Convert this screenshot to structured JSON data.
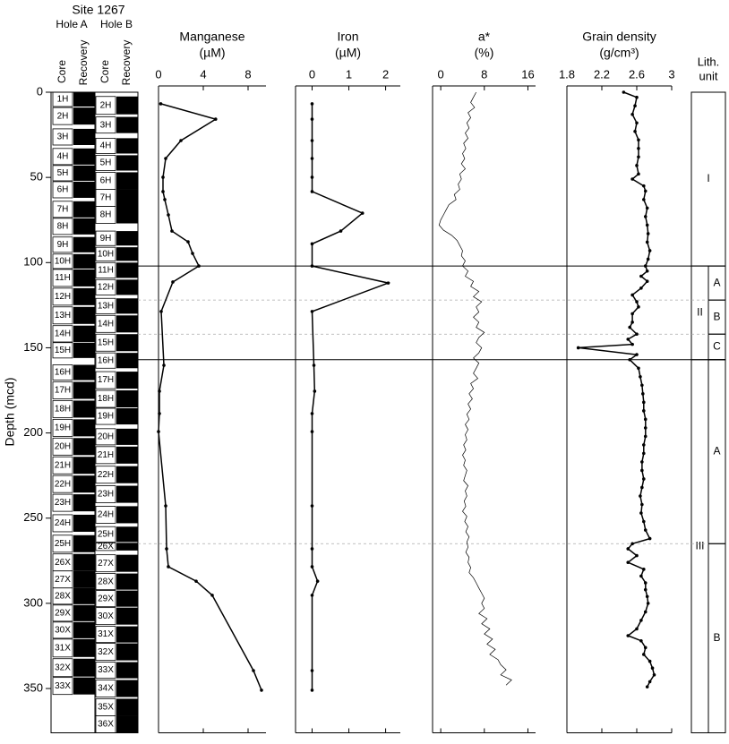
{
  "title": "Site 1267",
  "depth_axis": {
    "label": "Depth (mcd)",
    "ylim": [
      0,
      376
    ],
    "yticks": [
      0,
      50,
      100,
      150,
      200,
      250,
      300,
      350
    ]
  },
  "column_labels": [
    "Core",
    "Recovery"
  ],
  "holes": [
    {
      "name": "Hole A",
      "cores": [
        {
          "name": "1H",
          "top": 0,
          "bottom": 8.4
        },
        {
          "name": "2H",
          "top": 9,
          "bottom": 19
        },
        {
          "name": "3H",
          "top": 21.5,
          "bottom": 31
        },
        {
          "name": "4H",
          "top": 33,
          "bottom": 42.5
        },
        {
          "name": "5H",
          "top": 43,
          "bottom": 52
        },
        {
          "name": "6H",
          "top": 52.5,
          "bottom": 62
        },
        {
          "name": "7H",
          "top": 64,
          "bottom": 73.5
        },
        {
          "name": "8H",
          "top": 74,
          "bottom": 83.5
        },
        {
          "name": "9H",
          "top": 85,
          "bottom": 94
        },
        {
          "name": "10H",
          "top": 95,
          "bottom": 103.5
        },
        {
          "name": "11H",
          "top": 104,
          "bottom": 114
        },
        {
          "name": "12H",
          "top": 115,
          "bottom": 125
        },
        {
          "name": "13H",
          "top": 126,
          "bottom": 136
        },
        {
          "name": "14H",
          "top": 137,
          "bottom": 146.6
        },
        {
          "name": "15H",
          "top": 147,
          "bottom": 156
        },
        {
          "name": "16H",
          "top": 160,
          "bottom": 169
        },
        {
          "name": "17H",
          "top": 170,
          "bottom": 180
        },
        {
          "name": "18H",
          "top": 181,
          "bottom": 191
        },
        {
          "name": "19H",
          "top": 192,
          "bottom": 202
        },
        {
          "name": "20H",
          "top": 203,
          "bottom": 213
        },
        {
          "name": "21H",
          "top": 214,
          "bottom": 224
        },
        {
          "name": "22H",
          "top": 225,
          "bottom": 235
        },
        {
          "name": "23H",
          "top": 236,
          "bottom": 246
        },
        {
          "name": "24H",
          "top": 248,
          "bottom": 258
        },
        {
          "name": "25H",
          "top": 260,
          "bottom": 270
        },
        {
          "name": "26X",
          "top": 271,
          "bottom": 281
        },
        {
          "name": "27X",
          "top": 281,
          "bottom": 291
        },
        {
          "name": "28X",
          "top": 291,
          "bottom": 300.5
        },
        {
          "name": "29X",
          "top": 301,
          "bottom": 310.5
        },
        {
          "name": "30X",
          "top": 311,
          "bottom": 320.5
        },
        {
          "name": "31X",
          "top": 321,
          "bottom": 331.5
        },
        {
          "name": "32X",
          "top": 332.5,
          "bottom": 343
        },
        {
          "name": "33X",
          "top": 343.5,
          "bottom": 353.5
        }
      ]
    },
    {
      "name": "Hole B",
      "cores": [
        {
          "name": "2H",
          "top": 2.5,
          "bottom": 13
        },
        {
          "name": "3H",
          "top": 14.5,
          "bottom": 24
        },
        {
          "name": "4H",
          "top": 27,
          "bottom": 36
        },
        {
          "name": "5H",
          "top": 37,
          "bottom": 46
        },
        {
          "name": "6H",
          "top": 47,
          "bottom": 57
        },
        {
          "name": "7H",
          "top": 57,
          "bottom": 67
        },
        {
          "name": "8H",
          "top": 67,
          "bottom": 77
        },
        {
          "name": "9H",
          "top": 81.5,
          "bottom": 90
        },
        {
          "name": "10H",
          "top": 91,
          "bottom": 99
        },
        {
          "name": "11H",
          "top": 100,
          "bottom": 109
        },
        {
          "name": "12H",
          "top": 110,
          "bottom": 119
        },
        {
          "name": "13H",
          "top": 121,
          "bottom": 130
        },
        {
          "name": "14H",
          "top": 131,
          "bottom": 141
        },
        {
          "name": "15H",
          "top": 142,
          "bottom": 152
        },
        {
          "name": "16H",
          "top": 153,
          "bottom": 162
        },
        {
          "name": "17H",
          "top": 164,
          "bottom": 174
        },
        {
          "name": "18H",
          "top": 175,
          "bottom": 185
        },
        {
          "name": "19H",
          "top": 185.5,
          "bottom": 195
        },
        {
          "name": "20H",
          "top": 197.5,
          "bottom": 207
        },
        {
          "name": "21H",
          "top": 208,
          "bottom": 218
        },
        {
          "name": "22H",
          "top": 219.5,
          "bottom": 229.5
        },
        {
          "name": "23H",
          "top": 231,
          "bottom": 241
        },
        {
          "name": "24H",
          "top": 243,
          "bottom": 253
        },
        {
          "name": "25H",
          "top": 255,
          "bottom": 264
        },
        {
          "name": "26X",
          "top": 264.5,
          "bottom": 269
        },
        {
          "name": "27X",
          "top": 271.5,
          "bottom": 281.5
        },
        {
          "name": "28X",
          "top": 282.5,
          "bottom": 292
        },
        {
          "name": "29X",
          "top": 292.5,
          "bottom": 302
        },
        {
          "name": "30X",
          "top": 302.5,
          "bottom": 312.5
        },
        {
          "name": "31X",
          "top": 313.5,
          "bottom": 323
        },
        {
          "name": "32X",
          "top": 323.5,
          "bottom": 333.5
        },
        {
          "name": "33X",
          "top": 334.5,
          "bottom": 344
        },
        {
          "name": "34X",
          "top": 345,
          "bottom": 355
        },
        {
          "name": "35X",
          "top": 356,
          "bottom": 366
        },
        {
          "name": "36X",
          "top": 366,
          "bottom": 376
        }
      ]
    }
  ],
  "chart_data": [
    {
      "type": "line",
      "xlabel": "Manganese",
      "unit": "(µM)",
      "xlim": [
        0,
        9.6
      ],
      "xticks": [
        0,
        4,
        8
      ],
      "markers": true,
      "depth": [
        6.8,
        15.8,
        28.4,
        38.9,
        49.9,
        58.3,
        63,
        72,
        81.5,
        87.8,
        94.6,
        102,
        111.4,
        128.7,
        160.3,
        175.5,
        188.6,
        199.2,
        242.8,
        268,
        278.5,
        287,
        295.3,
        339.5,
        351
      ],
      "values": [
        0.2,
        5.1,
        2.0,
        0.64,
        0.4,
        0.4,
        0.56,
        0.88,
        1.2,
        2.64,
        3.04,
        3.6,
        1.28,
        0.24,
        0.48,
        0.08,
        0.08,
        0,
        0.64,
        0.72,
        0.88,
        3.36,
        4.8,
        8.48,
        9.2
      ]
    },
    {
      "type": "line",
      "xlabel": "Iron",
      "unit": "(µM)",
      "xlim": [
        -0.45,
        2.4
      ],
      "xticks": [
        0,
        1,
        2
      ],
      "markers": true,
      "depth": [
        6.8,
        15.8,
        28.4,
        38.9,
        49.9,
        58.3,
        71,
        81.5,
        89,
        102,
        112,
        128.7,
        160.3,
        175.5,
        188.6,
        199.2,
        242.8,
        268,
        278.5,
        287,
        295.3,
        339.5,
        351
      ],
      "values": [
        0,
        0,
        0,
        0,
        0,
        0,
        1.37,
        0.78,
        0,
        0,
        2.07,
        0,
        0.05,
        0.07,
        0,
        0,
        0,
        0,
        0,
        0.15,
        0,
        0,
        0
      ]
    },
    {
      "type": "line",
      "xlabel": "a*",
      "unit": "(%)",
      "xlim": [
        -1.5,
        17.4
      ],
      "xticks": [
        0,
        8,
        16
      ],
      "markers": false,
      "depth": [
        0,
        3,
        6,
        9,
        12,
        15,
        18,
        21,
        24,
        27,
        30,
        33,
        36,
        39,
        42,
        45,
        48,
        51,
        54,
        57,
        60,
        63,
        66,
        69,
        72,
        75,
        78,
        81,
        84,
        87,
        90,
        93,
        96,
        99,
        102,
        105,
        108,
        111,
        114,
        117,
        120,
        123,
        126,
        129,
        132,
        135,
        138,
        141,
        144,
        147,
        150,
        153,
        156,
        159,
        162,
        165,
        168,
        171,
        174,
        177,
        180,
        183,
        186,
        189,
        192,
        195,
        198,
        201,
        204,
        207,
        210,
        213,
        216,
        219,
        222,
        225,
        228,
        231,
        234,
        237,
        240,
        243,
        246,
        249,
        252,
        255,
        258,
        261,
        264,
        267,
        270,
        273,
        276,
        279,
        282,
        285,
        288,
        291,
        294,
        297,
        300,
        303,
        306,
        309,
        312,
        315,
        318,
        321,
        324,
        327,
        330,
        333,
        336,
        339,
        342,
        345,
        348
      ],
      "values": [
        6.5,
        6,
        5.5,
        6.2,
        5,
        5.5,
        4.8,
        5.2,
        4.5,
        5,
        4.2,
        4.6,
        4,
        4.4,
        3.8,
        4.5,
        3.5,
        3.8,
        3.2,
        3.5,
        2.5,
        2.8,
        1.5,
        1,
        0.5,
        0,
        -0.3,
        0.5,
        2,
        3,
        3.5,
        4,
        3.8,
        4.5,
        4,
        5,
        4.5,
        6,
        5.5,
        7,
        6,
        7.5,
        6.5,
        7,
        6,
        7,
        6.5,
        8,
        7,
        6.5,
        7.5,
        7,
        6,
        7,
        6.5,
        6,
        6.8,
        5.5,
        6,
        5.2,
        5.8,
        5,
        5.5,
        4.8,
        5.2,
        4.5,
        5,
        4.5,
        4.8,
        4.2,
        4.6,
        4,
        4.5,
        4.2,
        4.8,
        4.5,
        4.2,
        5,
        4.5,
        4.8,
        4.3,
        4.6,
        4,
        4.8,
        4.4,
        5,
        4.6,
        5.2,
        4.8,
        5,
        4.6,
        5.2,
        5,
        5.5,
        5.2,
        6,
        6.5,
        7,
        7.5,
        8,
        7.5,
        8,
        7,
        8.5,
        7.5,
        9,
        8,
        9.5,
        8.5,
        10,
        9,
        10.5,
        11,
        12,
        11,
        13,
        12
      ]
    },
    {
      "type": "line",
      "xlabel": "Grain density",
      "unit": "(g/cm³)",
      "xlim": [
        1.8,
        3
      ],
      "xticks": [
        1.8,
        2.2,
        2.6,
        3
      ],
      "markers": true,
      "depth": [
        0,
        3,
        8,
        13,
        18,
        23,
        28,
        33,
        38,
        43,
        48,
        51,
        55,
        58,
        63,
        68,
        73,
        78,
        83,
        88,
        93,
        98,
        102,
        105,
        108,
        111,
        115,
        119,
        123,
        126,
        130,
        135,
        138,
        142,
        145,
        148,
        150,
        154,
        157,
        162,
        167,
        172,
        177,
        182,
        187,
        192,
        197,
        202,
        207,
        212,
        217,
        222,
        227,
        232,
        237,
        242,
        247,
        252,
        257,
        262,
        265,
        268,
        272,
        276,
        280,
        284,
        288,
        292,
        296,
        300,
        305,
        310,
        315,
        319,
        322,
        326,
        330,
        334,
        338,
        342,
        346,
        349
      ],
      "values": [
        2.45,
        2.6,
        2.58,
        2.55,
        2.6,
        2.58,
        2.62,
        2.62,
        2.62,
        2.6,
        2.62,
        2.55,
        2.68,
        2.7,
        2.68,
        2.72,
        2.7,
        2.72,
        2.73,
        2.72,
        2.75,
        2.73,
        2.7,
        2.72,
        2.65,
        2.72,
        2.65,
        2.55,
        2.6,
        2.62,
        2.55,
        2.55,
        2.52,
        2.6,
        2.5,
        2.55,
        1.93,
        2.6,
        2.52,
        2.62,
        2.64,
        2.66,
        2.67,
        2.68,
        2.68,
        2.7,
        2.7,
        2.7,
        2.68,
        2.68,
        2.66,
        2.66,
        2.68,
        2.66,
        2.64,
        2.66,
        2.65,
        2.68,
        2.7,
        2.75,
        2.55,
        2.5,
        2.6,
        2.5,
        2.68,
        2.65,
        2.7,
        2.7,
        2.72,
        2.73,
        2.7,
        2.65,
        2.6,
        2.5,
        2.65,
        2.7,
        2.68,
        2.75,
        2.78,
        2.8,
        2.75,
        2.72
      ]
    }
  ],
  "lith": {
    "header": [
      "Lith.",
      "unit"
    ],
    "units": [
      {
        "name": "I",
        "top": 0,
        "bottom": 102
      },
      {
        "name": "II",
        "top": 102,
        "bottom": 157
      },
      {
        "name": "III",
        "top": 157,
        "bottom": 376
      }
    ],
    "subunits": [
      {
        "name": "A",
        "top": 102,
        "bottom": 122
      },
      {
        "name": "B",
        "top": 122,
        "bottom": 142
      },
      {
        "name": "C",
        "top": 142,
        "bottom": 157
      },
      {
        "name": "A",
        "top": 157,
        "bottom": 265
      },
      {
        "name": "B",
        "top": 265,
        "bottom": 376
      }
    ]
  }
}
